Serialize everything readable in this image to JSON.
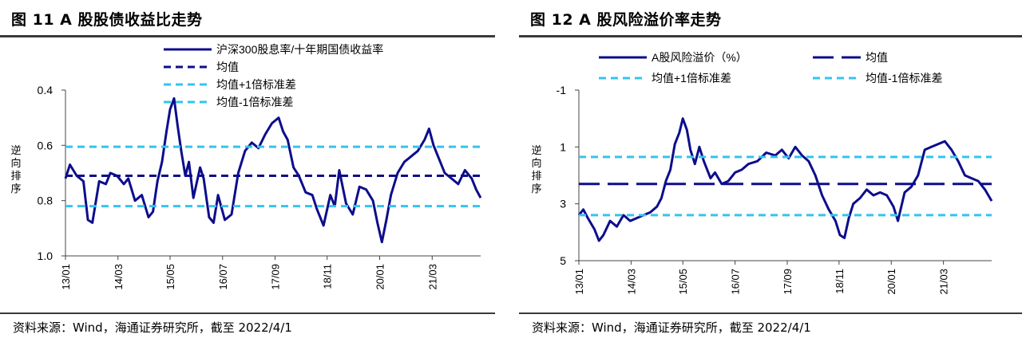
{
  "left": {
    "title": "图 11 A 股股债收益比走势",
    "source": "资料来源：Wind，海通证券研究所，截至 2022/4/1",
    "ylabel_chars": [
      "逆",
      "向",
      "排",
      "序"
    ],
    "colors": {
      "navy": "#0d0d8c",
      "cyan": "#33c4ef"
    }
  },
  "right": {
    "title": "图 12 A 股风险溢价率走势",
    "source": "资料来源：Wind，海通证券研究所，截至 2022/4/1",
    "ylabel_chars": [
      "逆",
      "向",
      "排",
      "序"
    ],
    "colors": {
      "navy": "#0d0d8c",
      "cyan": "#33c4ef"
    }
  },
  "chart_data": [
    {
      "type": "line",
      "title": "图 11 A 股股债收益比走势",
      "ylabel": "逆向排序",
      "yinverted": true,
      "ylim": [
        0.4,
        1.0
      ],
      "yticks": [
        "0.4",
        "0.6",
        "0.8",
        "1.0"
      ],
      "xlim": [
        2013.0,
        2022.25
      ],
      "xticks": [
        {
          "label": "13/01",
          "x": 2013.0
        },
        {
          "label": "14/03",
          "x": 2014.17
        },
        {
          "label": "15/05",
          "x": 2015.33
        },
        {
          "label": "16/07",
          "x": 2016.5
        },
        {
          "label": "17/09",
          "x": 2017.67
        },
        {
          "label": "18/11",
          "x": 2018.83
        },
        {
          "label": "20/01",
          "x": 2020.0
        },
        {
          "label": "21/03",
          "x": 2021.17
        }
      ],
      "series": [
        {
          "name": "沪深300股息率/十年期国债收益率",
          "style": "solid",
          "x": [
            2013.0,
            2013.1,
            2013.25,
            2013.4,
            2013.5,
            2013.6,
            2013.75,
            2013.9,
            2014.0,
            2014.15,
            2014.3,
            2014.4,
            2014.55,
            2014.7,
            2014.85,
            2014.95,
            2015.05,
            2015.15,
            2015.25,
            2015.33,
            2015.42,
            2015.5,
            2015.58,
            2015.67,
            2015.75,
            2015.85,
            2016.0,
            2016.08,
            2016.2,
            2016.3,
            2016.4,
            2016.55,
            2016.7,
            2016.85,
            2017.0,
            2017.15,
            2017.3,
            2017.45,
            2017.6,
            2017.75,
            2017.85,
            2017.95,
            2018.08,
            2018.2,
            2018.35,
            2018.5,
            2018.6,
            2018.75,
            2018.9,
            2019.0,
            2019.1,
            2019.25,
            2019.4,
            2019.55,
            2019.7,
            2019.85,
            2019.95,
            2020.05,
            2020.15,
            2020.25,
            2020.4,
            2020.55,
            2020.7,
            2020.85,
            2021.0,
            2021.1,
            2021.2,
            2021.3,
            2021.45,
            2021.6,
            2021.75,
            2021.9,
            2022.05,
            2022.15,
            2022.25
          ],
          "values": [
            0.72,
            0.67,
            0.71,
            0.73,
            0.87,
            0.88,
            0.73,
            0.74,
            0.7,
            0.71,
            0.74,
            0.72,
            0.8,
            0.78,
            0.86,
            0.84,
            0.73,
            0.66,
            0.55,
            0.47,
            0.43,
            0.53,
            0.62,
            0.71,
            0.66,
            0.79,
            0.68,
            0.72,
            0.86,
            0.88,
            0.78,
            0.87,
            0.85,
            0.7,
            0.62,
            0.59,
            0.61,
            0.56,
            0.52,
            0.5,
            0.55,
            0.58,
            0.68,
            0.71,
            0.77,
            0.78,
            0.83,
            0.89,
            0.78,
            0.82,
            0.69,
            0.81,
            0.85,
            0.75,
            0.76,
            0.8,
            0.88,
            0.95,
            0.87,
            0.78,
            0.7,
            0.66,
            0.64,
            0.62,
            0.58,
            0.54,
            0.6,
            0.64,
            0.7,
            0.72,
            0.74,
            0.69,
            0.72,
            0.76,
            0.79
          ]
        },
        {
          "name": "均值",
          "style": "dash",
          "value": 0.71
        },
        {
          "name": "均值+1倍标准差",
          "style": "dash",
          "value": 0.605
        },
        {
          "name": "均值-1倍标准差",
          "style": "dash",
          "value": 0.82
        }
      ],
      "legend": "top"
    },
    {
      "type": "line",
      "title": "图 12 A 股风险溢价率走势",
      "ylabel": "逆向排序",
      "yinverted": true,
      "ylim": [
        -1,
        5
      ],
      "yticks": [
        "-1",
        "1",
        "3",
        "5"
      ],
      "xlim": [
        2013.0,
        2022.25
      ],
      "xticks": [
        {
          "label": "13/01",
          "x": 2013.0
        },
        {
          "label": "14/03",
          "x": 2014.17
        },
        {
          "label": "15/05",
          "x": 2015.33
        },
        {
          "label": "16/07",
          "x": 2016.5
        },
        {
          "label": "17/09",
          "x": 2017.67
        },
        {
          "label": "18/11",
          "x": 2018.83
        },
        {
          "label": "20/01",
          "x": 2020.0
        },
        {
          "label": "21/03",
          "x": 2021.17
        }
      ],
      "series": [
        {
          "name": "A股风险溢价（%）",
          "style": "solid",
          "x": [
            2013.0,
            2013.1,
            2013.2,
            2013.35,
            2013.45,
            2013.55,
            2013.7,
            2013.85,
            2014.0,
            2014.15,
            2014.3,
            2014.45,
            2014.6,
            2014.75,
            2014.85,
            2014.95,
            2015.05,
            2015.15,
            2015.25,
            2015.33,
            2015.42,
            2015.5,
            2015.6,
            2015.7,
            2015.8,
            2015.95,
            2016.05,
            2016.2,
            2016.35,
            2016.5,
            2016.65,
            2016.8,
            2017.0,
            2017.2,
            2017.4,
            2017.55,
            2017.7,
            2017.85,
            2018.0,
            2018.15,
            2018.3,
            2018.45,
            2018.6,
            2018.75,
            2018.85,
            2018.95,
            2019.05,
            2019.15,
            2019.3,
            2019.45,
            2019.6,
            2019.75,
            2019.9,
            2020.05,
            2020.15,
            2020.3,
            2020.45,
            2020.6,
            2020.75,
            2020.9,
            2021.05,
            2021.2,
            2021.35,
            2021.5,
            2021.65,
            2021.8,
            2021.95,
            2022.1,
            2022.25
          ],
          "values": [
            3.4,
            3.2,
            3.5,
            3.9,
            4.3,
            4.1,
            3.6,
            3.8,
            3.4,
            3.6,
            3.5,
            3.4,
            3.3,
            3.1,
            2.8,
            2.2,
            1.8,
            0.9,
            0.5,
            0.0,
            0.4,
            1.1,
            1.6,
            1.0,
            1.5,
            2.1,
            1.9,
            2.3,
            2.2,
            1.9,
            1.8,
            1.6,
            1.5,
            1.2,
            1.3,
            1.1,
            1.4,
            1.0,
            1.3,
            1.5,
            2.0,
            2.7,
            3.2,
            3.6,
            4.1,
            4.2,
            3.5,
            3.0,
            2.8,
            2.5,
            2.7,
            2.6,
            2.7,
            3.1,
            3.6,
            2.6,
            2.4,
            2.0,
            1.1,
            1.0,
            0.9,
            0.8,
            1.1,
            1.5,
            2.0,
            2.1,
            2.2,
            2.5,
            2.9
          ]
        },
        {
          "name": "均值",
          "style": "longdash",
          "value": 2.3
        },
        {
          "name": "均值+1倍标准差",
          "style": "dash",
          "value": 1.35
        },
        {
          "name": "均值-1倍标准差",
          "style": "dash",
          "value": 3.4
        }
      ],
      "legend": "top"
    }
  ]
}
